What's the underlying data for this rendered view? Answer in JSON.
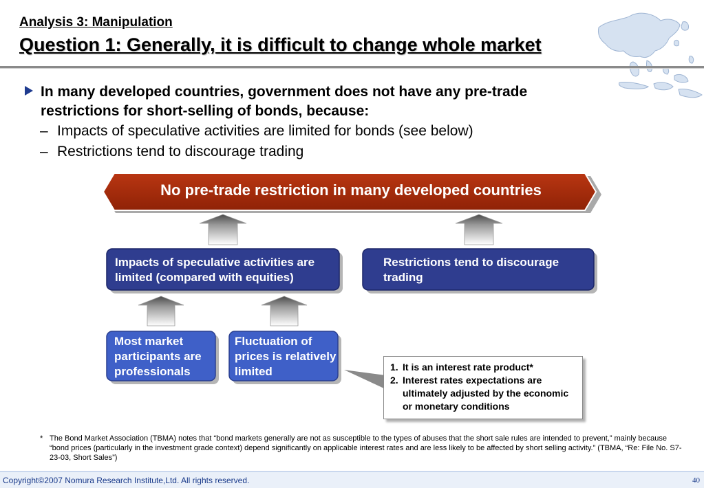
{
  "header": {
    "subtitle": "Analysis 3: Manipulation",
    "title": "Question 1: Generally, it is difficult to change whole market"
  },
  "bullets": {
    "main": "In many developed countries, government does not have any pre-trade restrictions for short-selling of bonds, because:",
    "sub": [
      "Impacts of speculative activities are limited for bonds (see below)",
      "Restrictions tend to discourage trading"
    ],
    "dash": "–"
  },
  "diagram": {
    "banner": "No pre-trade restriction in many developed countries",
    "impacts_box": "Impacts of speculative activities are limited (compared with equities)",
    "restrictions_box": "Restrictions tend to discourage trading",
    "participants_box": "Most market participants are professionals",
    "fluctuation_box": "Fluctuation of prices is relatively limited",
    "notes": [
      {
        "num": "1.",
        "text": "It is an interest rate product*"
      },
      {
        "num": "2.",
        "text": "Interest rates expectations are ultimately adjusted by the economic or monetary conditions"
      }
    ],
    "colors": {
      "banner": "#a3290a",
      "box_dark": "#2f3d8f",
      "box_light": "#3f60c8",
      "arrow_top": "#555555"
    }
  },
  "footnote": {
    "star": "*",
    "text": "The Bond Market Association (TBMA) notes that “bond markets generally are not as susceptible to the types of abuses that the short sale rules are intended to prevent,” mainly because “bond prices (particularly in the investment grade context) depend significantly on applicable interest rates and are less likely to be affected by short selling activity.” (TBMA, “Re: File No. S7-23-03, Short Sales”)"
  },
  "footer": {
    "copyright": "Copyright©2007 Nomura Research Institute,Ltd. All rights reserved.",
    "page": "40"
  },
  "icons": {
    "logo": "asia-map-icon",
    "bullet": "triangle-bullet-icon"
  }
}
